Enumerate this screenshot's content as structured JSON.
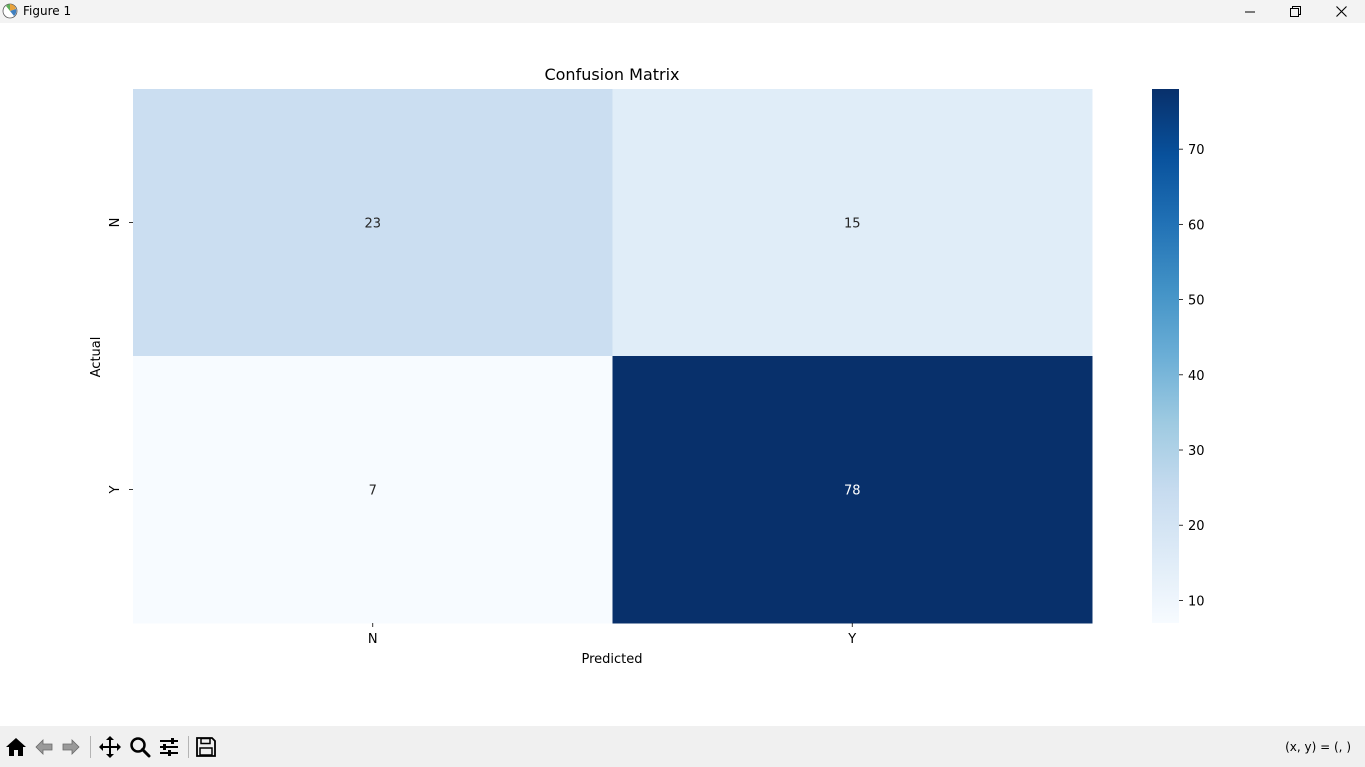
{
  "window": {
    "title": "Figure 1",
    "icon": "matplotlib-icon",
    "controls": [
      "minimize-icon",
      "maximize-icon",
      "close-icon"
    ]
  },
  "toolbar": {
    "buttons": [
      "home-icon",
      "back-icon",
      "forward-icon",
      "pan-icon",
      "zoom-icon",
      "configure-subplots-icon",
      "save-icon"
    ],
    "coords": "(x, y) = (, )"
  },
  "chart_data": {
    "type": "heatmap",
    "title": "Confusion Matrix",
    "xlabel": "Predicted",
    "ylabel": "Actual",
    "x_categories": [
      "N",
      "Y"
    ],
    "y_categories": [
      "N",
      "Y"
    ],
    "values": [
      [
        23,
        15
      ],
      [
        7,
        78
      ]
    ],
    "colormap": "Blues",
    "colors": {
      "min": "#f7fbff",
      "max": "#08306b"
    },
    "colorbar": {
      "range": [
        7,
        78
      ],
      "ticks": [
        10,
        20,
        30,
        40,
        50,
        60,
        70
      ]
    },
    "annotations": true,
    "grid": false
  }
}
